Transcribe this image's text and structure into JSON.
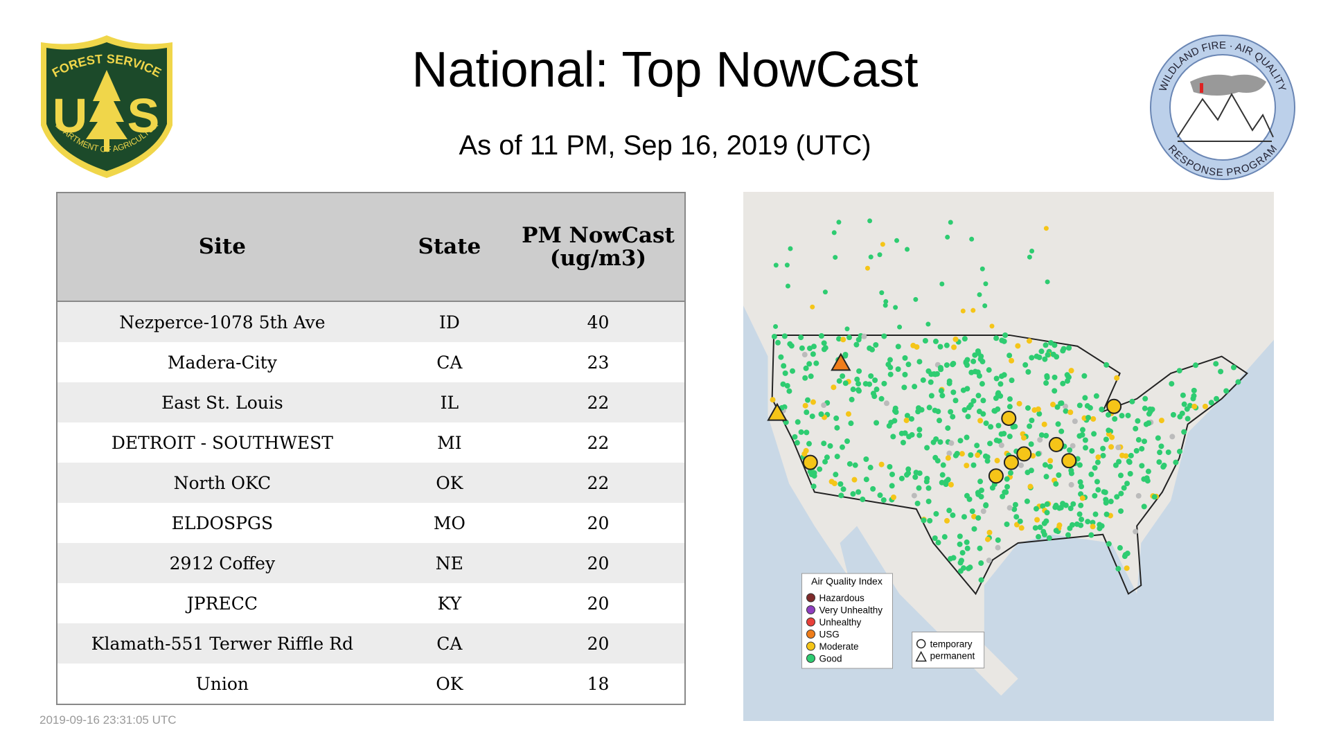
{
  "header": {
    "title": "National: Top NowCast",
    "subtitle": "As of 11 PM, Sep 16, 2019 (UTC)"
  },
  "logos": {
    "usfs": {
      "top": "FOREST SERVICE",
      "letter_left": "U",
      "letter_right": "S",
      "bottom": "DEPARTMENT OF AGRICULTURE"
    },
    "wfaqrp": {
      "top": "WILDLAND FIRE · AIR QUALITY",
      "bottom": "RESPONSE PROGRAM"
    }
  },
  "table": {
    "columns": [
      "Site",
      "State",
      "PM NowCast (ug/m3)"
    ],
    "rows": [
      [
        "Nezperce-1078 5th Ave",
        "ID",
        40
      ],
      [
        "Madera-City",
        "CA",
        23
      ],
      [
        "East St. Louis",
        "IL",
        22
      ],
      [
        "DETROIT - SOUTHWEST",
        "MI",
        22
      ],
      [
        "North OKC",
        "OK",
        22
      ],
      [
        "ELDOSPGS",
        "MO",
        20
      ],
      [
        "2912 Coffey",
        "NE",
        20
      ],
      [
        "JPRECC",
        "KY",
        20
      ],
      [
        "Klamath-551 Terwer Riffle Rd",
        "CA",
        20
      ],
      [
        "Union",
        "OK",
        18
      ]
    ]
  },
  "map": {
    "legend": {
      "title": "Air Quality Index",
      "items": [
        {
          "label": "Hazardous",
          "color": "#7e2a2a"
        },
        {
          "label": "Very Unhealthy",
          "color": "#8f3fbf"
        },
        {
          "label": "Unhealthy",
          "color": "#e8403a"
        },
        {
          "label": "USG",
          "color": "#ef7d1a"
        },
        {
          "label": "Moderate",
          "color": "#f5c518"
        },
        {
          "label": "Good",
          "color": "#2ecc71"
        }
      ]
    },
    "shapes": [
      "temporary",
      "permanent"
    ]
  },
  "footer": {
    "timestamp": "2019-09-16 23:31:05 UTC"
  }
}
